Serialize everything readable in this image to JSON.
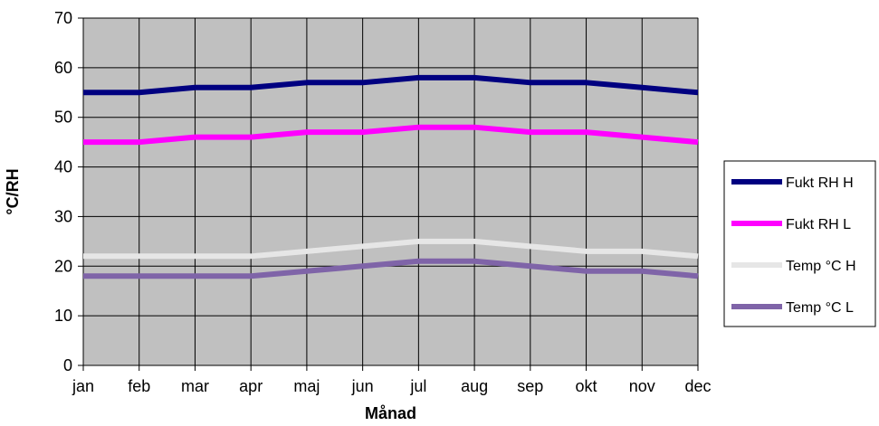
{
  "chart_data": {
    "type": "line",
    "categories": [
      "jan",
      "feb",
      "mar",
      "apr",
      "maj",
      "jun",
      "jul",
      "aug",
      "sep",
      "okt",
      "nov",
      "dec"
    ],
    "series": [
      {
        "name": "Fukt RH H",
        "color": "#000080",
        "values": [
          55,
          55,
          56,
          56,
          57,
          57,
          58,
          58,
          57,
          57,
          56,
          55
        ]
      },
      {
        "name": "Fukt RH L",
        "color": "#FF00FF",
        "values": [
          45,
          45,
          46,
          46,
          47,
          47,
          48,
          48,
          47,
          47,
          46,
          45
        ]
      },
      {
        "name": "Temp °C H",
        "color": "#E6E6E6",
        "values": [
          22,
          22,
          22,
          22,
          23,
          24,
          25,
          25,
          24,
          23,
          23,
          22
        ]
      },
      {
        "name": "Temp °C L",
        "color": "#7F64A8",
        "values": [
          18,
          18,
          18,
          18,
          19,
          20,
          21,
          21,
          20,
          19,
          19,
          18
        ]
      }
    ],
    "xlabel": "Månad",
    "ylabel": "°C/RH",
    "ylim": [
      0,
      70
    ],
    "ytick_step": 10,
    "grid": true,
    "plot_background": "#C0C0C0",
    "legend_position": "right"
  }
}
